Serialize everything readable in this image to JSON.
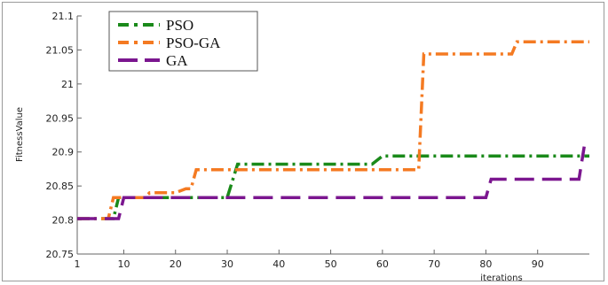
{
  "chart_data": {
    "type": "line",
    "title": "",
    "xlabel": "iterations",
    "ylabel": "FitnessValue",
    "xlim": [
      1,
      100
    ],
    "ylim": [
      20.75,
      21.1
    ],
    "x_ticks": [
      1,
      10,
      20,
      30,
      40,
      50,
      60,
      70,
      80,
      90
    ],
    "y_ticks": [
      20.75,
      20.8,
      20.85,
      20.9,
      20.95,
      21,
      21.05,
      21.1
    ],
    "y_tick_labels": [
      "20.75",
      "20.8",
      "20.85",
      "20.9",
      "20.95",
      "21",
      "21.05",
      "21.1"
    ],
    "grid": false,
    "legend_position": "top-left",
    "series": [
      {
        "name": "PSO",
        "color": "#1a8a1a",
        "dash": "dash-dot",
        "points": [
          [
            1,
            20.802
          ],
          [
            8,
            20.802
          ],
          [
            9,
            20.833
          ],
          [
            30,
            20.833
          ],
          [
            32,
            20.882
          ],
          [
            58,
            20.882
          ],
          [
            60,
            20.894
          ],
          [
            100,
            20.894
          ]
        ]
      },
      {
        "name": "PSO-GA",
        "color": "#f47a22",
        "dash": "dash-dot",
        "points": [
          [
            1,
            20.802
          ],
          [
            7,
            20.802
          ],
          [
            8,
            20.833
          ],
          [
            14,
            20.833
          ],
          [
            15,
            20.84
          ],
          [
            20,
            20.84
          ],
          [
            22,
            20.846
          ],
          [
            23,
            20.846
          ],
          [
            24,
            20.874
          ],
          [
            67,
            20.874
          ],
          [
            68,
            21.044
          ],
          [
            85,
            21.044
          ],
          [
            86,
            21.062
          ],
          [
            100,
            21.062
          ]
        ]
      },
      {
        "name": "GA",
        "color": "#7b168f",
        "dash": "long-dash",
        "points": [
          [
            1,
            20.802
          ],
          [
            9,
            20.802
          ],
          [
            10,
            20.833
          ],
          [
            80,
            20.833
          ],
          [
            81,
            20.86
          ],
          [
            98,
            20.86
          ],
          [
            99,
            20.908
          ]
        ]
      }
    ]
  }
}
